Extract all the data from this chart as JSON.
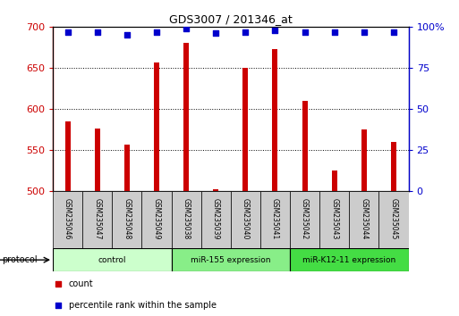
{
  "title": "GDS3007 / 201346_at",
  "samples": [
    "GSM235046",
    "GSM235047",
    "GSM235048",
    "GSM235049",
    "GSM235038",
    "GSM235039",
    "GSM235040",
    "GSM235041",
    "GSM235042",
    "GSM235043",
    "GSM235044",
    "GSM235045"
  ],
  "count_values": [
    585,
    576,
    557,
    657,
    680,
    502,
    650,
    673,
    610,
    525,
    575,
    560
  ],
  "percentile_values": [
    97,
    97,
    95,
    97,
    99,
    96,
    97,
    98,
    97,
    97,
    97,
    97
  ],
  "groups": [
    {
      "label": "control",
      "start": 0,
      "end": 4,
      "color": "#ccffcc"
    },
    {
      "label": "miR-155 expression",
      "start": 4,
      "end": 8,
      "color": "#88ee88"
    },
    {
      "label": "miR-K12-11 expression",
      "start": 8,
      "end": 12,
      "color": "#44dd44"
    }
  ],
  "ylim_left": [
    500,
    700
  ],
  "ylim_right": [
    0,
    100
  ],
  "yticks_left": [
    500,
    550,
    600,
    650,
    700
  ],
  "yticks_right": [
    0,
    25,
    50,
    75,
    100
  ],
  "left_color": "#cc0000",
  "right_color": "#0000cc",
  "bar_color": "#cc0000",
  "dot_color": "#0000cc",
  "sample_box_color": "#cccccc",
  "bar_width": 0.18
}
